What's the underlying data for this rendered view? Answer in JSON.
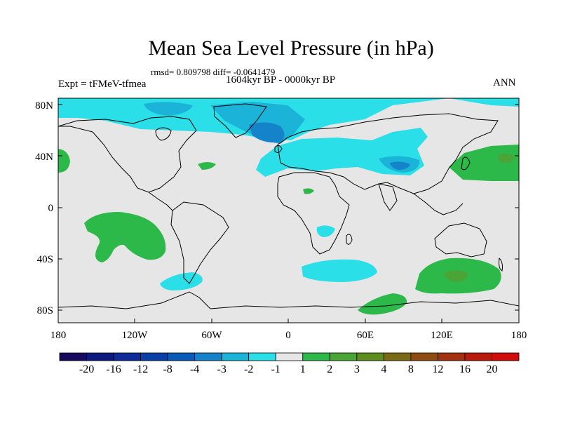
{
  "title": "Mean Sea Level Pressure (in hPa)",
  "stats": "rmsd= 0.809798 diff= -0.0641479",
  "period": "1604kyr BP - 0000kyr BP",
  "experiment": "Expt = tFMeV-tfmea",
  "season": "ANN",
  "axes": {
    "lat_labels": [
      "80N",
      "40N",
      "0",
      "40S",
      "80S"
    ],
    "lon_labels": [
      "180",
      "120W",
      "60W",
      "0",
      "60E",
      "120E",
      "180"
    ]
  },
  "colorbar": {
    "labels": [
      "-20",
      "-16",
      "-12",
      "-8",
      "-4",
      "-3",
      "-2",
      "-1",
      "1",
      "2",
      "3",
      "4",
      "8",
      "12",
      "16",
      "20"
    ],
    "colors": [
      "#170a5c",
      "#0c1a80",
      "#0d2b99",
      "#0a3fa8",
      "#0a5bb8",
      "#1583c9",
      "#1bb3d8",
      "#2adfe8",
      "#e6e6e6",
      "#2cb94a",
      "#4aa436",
      "#5e8c1e",
      "#7a6a15",
      "#8e4b12",
      "#a33010",
      "#b81a0e",
      "#d10c0c"
    ]
  },
  "palette": {
    "land_neutral": "#e6e6e6",
    "cyan": "#2adfe8",
    "blue_mid": "#1bb3d8",
    "blue_dark": "#1583c9",
    "green": "#2cb94a",
    "green_dark": "#4aa436"
  }
}
